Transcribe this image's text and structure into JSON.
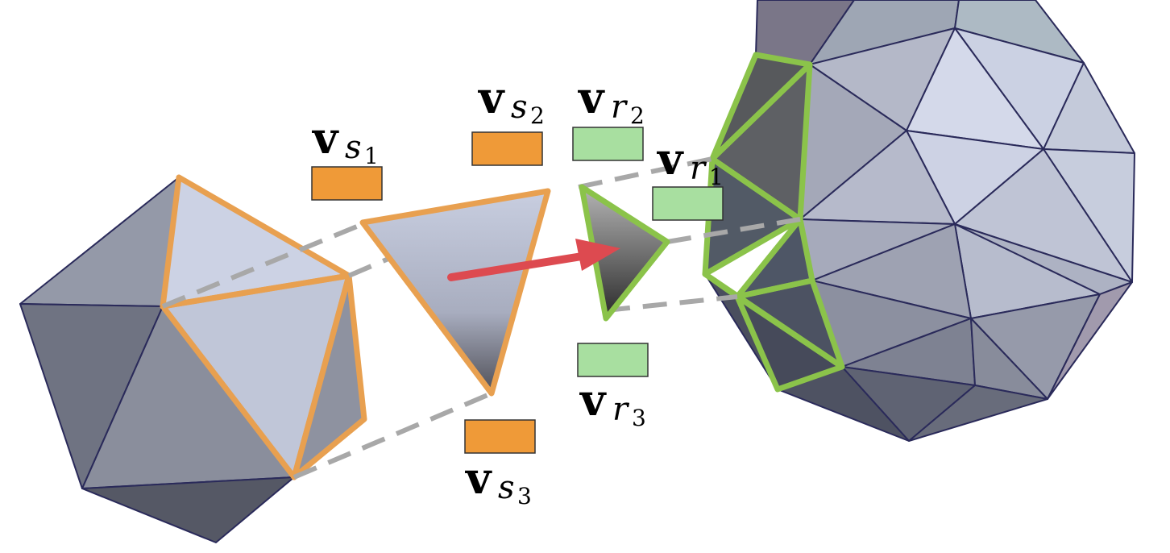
{
  "labels": {
    "vs1": {
      "main": "v",
      "sub": "s",
      "subsub": "1"
    },
    "vs2": {
      "main": "v",
      "sub": "s",
      "subsub": "2"
    },
    "vs3": {
      "main": "v",
      "sub": "s",
      "subsub": "3"
    },
    "vr1": {
      "main": "v",
      "sub": "r",
      "subsub": "1"
    },
    "vr2": {
      "main": "v",
      "sub": "r",
      "subsub": "2"
    },
    "vr3": {
      "main": "v",
      "sub": "r",
      "subsub": "3"
    }
  },
  "colors": {
    "source_outline": "#e8a050",
    "source_feature": "#ef9a38",
    "target_outline": "#8bc34a",
    "target_feature": "#a8dfa0",
    "arrow": "#dd4a50",
    "dash": "#a8a8a8",
    "mesh_edge": "#2a2a5a"
  }
}
